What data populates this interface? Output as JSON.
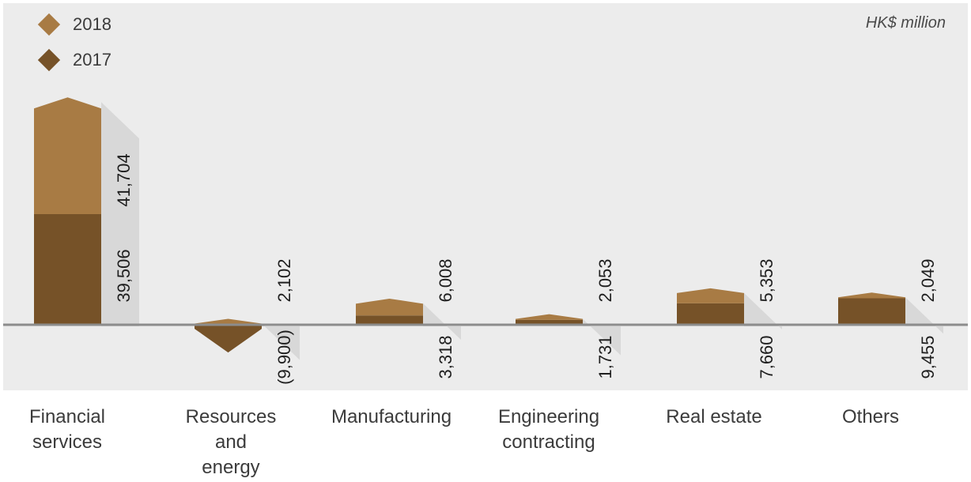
{
  "chart_data": {
    "type": "bar",
    "unit": "HK$ million",
    "categories": [
      "Financial\nservices",
      "Resources\nand\nenergy",
      "Manufacturing",
      "Engineering\ncontracting",
      "Real estate",
      "Others"
    ],
    "series": [
      {
        "name": "2018",
        "values": [
          41704,
          2102,
          6008,
          2053,
          5353,
          2049
        ],
        "labels": [
          "41,704",
          "2,102",
          "6,008",
          "2,053",
          "5,353",
          "2,049"
        ],
        "color": "#a87b44"
      },
      {
        "name": "2017",
        "values": [
          39506,
          -9900,
          3318,
          1731,
          7660,
          9455
        ],
        "labels": [
          "39,506",
          "(9,900)",
          "3,318",
          "1,731",
          "7,660",
          "9,455"
        ],
        "color": "#765228"
      }
    ],
    "legend_position": "top-left"
  },
  "colors": {
    "background": "#ececec",
    "axis": "#8c8c8c",
    "shadow": "#d6d6d6"
  }
}
